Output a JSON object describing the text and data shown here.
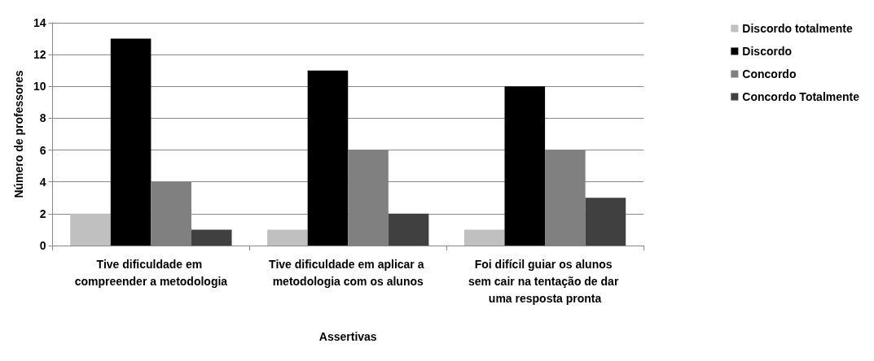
{
  "chart_data": {
    "type": "bar",
    "xlabel": "Assertivas",
    "ylabel": "Número de professores",
    "categories": [
      "Tive dificuldade em compreender a metodologia",
      "Tive dificuldade em aplicar a metodologia com os alunos",
      "Foi difícil guiar os alunos sem cair na tentação de dar uma resposta pronta"
    ],
    "series": [
      {
        "name": "Discordo totalmente",
        "color": "#c0c0c0",
        "values": [
          2,
          1,
          1
        ]
      },
      {
        "name": "Discordo",
        "color": "#000000",
        "values": [
          13,
          11,
          10
        ]
      },
      {
        "name": "Concordo",
        "color": "#808080",
        "values": [
          4,
          6,
          6
        ]
      },
      {
        "name": "Concordo Totalmente",
        "color": "#404040",
        "values": [
          1,
          2,
          3
        ]
      }
    ],
    "ylim": [
      0,
      14
    ],
    "yticks": [
      0,
      2,
      4,
      6,
      8,
      10,
      12,
      14
    ],
    "grid": "y",
    "legend": "right"
  }
}
